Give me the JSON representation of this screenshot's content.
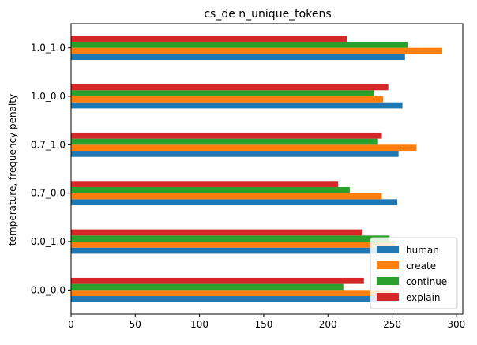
{
  "chart_data": {
    "type": "bar",
    "orientation": "horizontal",
    "title": "cs_de n_unique_tokens",
    "xlabel": "",
    "ylabel": "temperature, frequency penalty",
    "categories": [
      "0.0_0.0",
      "0.0_1.0",
      "0.7_0.0",
      "0.7_1.0",
      "1.0_0.0",
      "1.0_1.0"
    ],
    "xlim": [
      0,
      305
    ],
    "xticks": [
      0,
      50,
      100,
      150,
      200,
      250,
      300
    ],
    "grid": false,
    "legend_position": "lower right",
    "series": [
      {
        "name": "human",
        "color": "#1f77b4",
        "values": [
          254,
          254,
          254,
          255,
          258,
          260
        ]
      },
      {
        "name": "create",
        "color": "#ff7f0e",
        "values": [
          250,
          252,
          242,
          269,
          243,
          289
        ]
      },
      {
        "name": "continue",
        "color": "#2ca02c",
        "values": [
          212,
          248,
          217,
          239,
          236,
          262
        ]
      },
      {
        "name": "explain",
        "color": "#d62728",
        "values": [
          228,
          227,
          208,
          242,
          247,
          215
        ]
      }
    ]
  }
}
